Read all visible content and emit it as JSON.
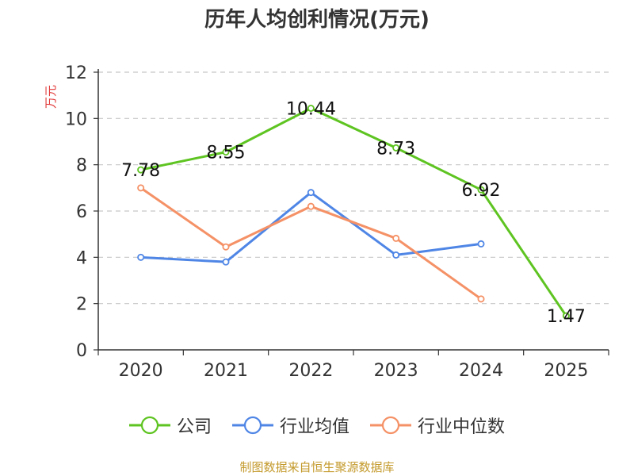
{
  "title": "历年人均创利情况(万元)",
  "source_note": "制图数据来自恒生聚源数据库",
  "chart_data": {
    "type": "line",
    "ylabel": "万元",
    "xlabel": "",
    "categories": [
      "2020",
      "2021",
      "2022",
      "2023",
      "2024",
      "2025"
    ],
    "ylim": [
      0,
      12
    ],
    "yticks": [
      0,
      2,
      4,
      6,
      8,
      10,
      12
    ],
    "grid": true,
    "legend_position": "bottom",
    "series": [
      {
        "name": "公司",
        "color": "#5ec421",
        "values": [
          7.78,
          8.55,
          10.44,
          8.73,
          6.92,
          1.47
        ],
        "labels": [
          "7.78",
          "8.55",
          "10.44",
          "8.73",
          "6.92",
          "1.47"
        ]
      },
      {
        "name": "行业均值",
        "color": "#4f86e6",
        "values": [
          4.0,
          3.8,
          6.8,
          4.1,
          4.58,
          null
        ]
      },
      {
        "name": "行业中位数",
        "color": "#f59166",
        "values": [
          7.0,
          4.45,
          6.2,
          4.82,
          2.2,
          null
        ]
      }
    ]
  }
}
